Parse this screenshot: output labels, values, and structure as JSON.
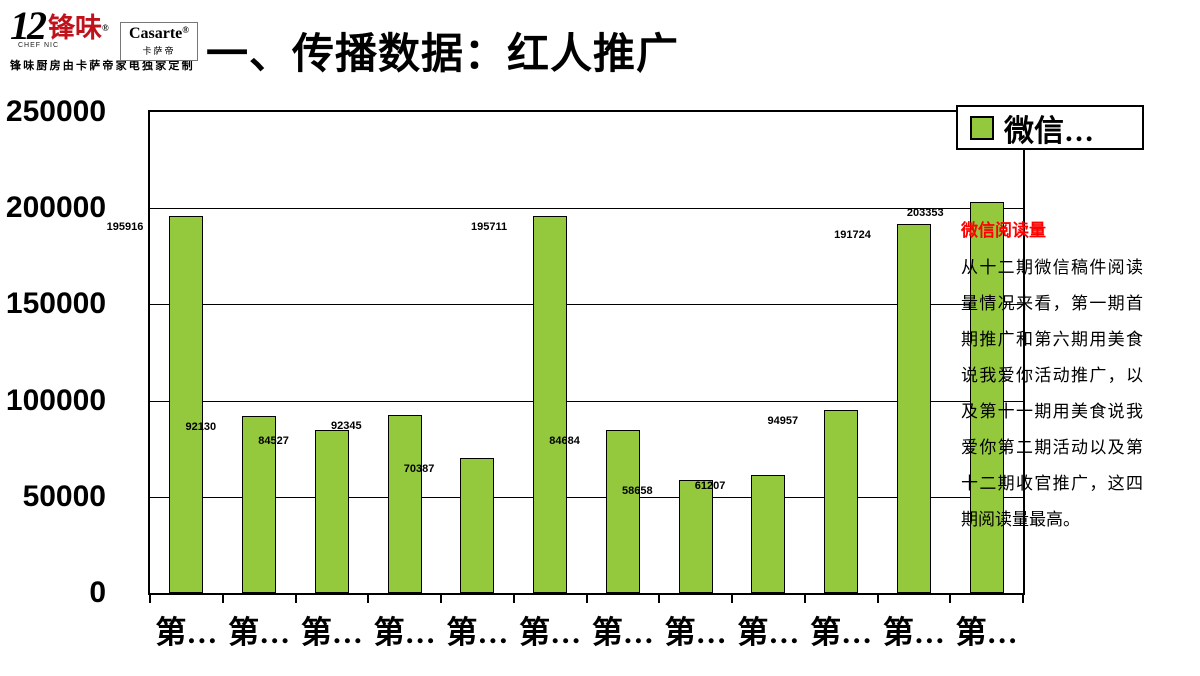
{
  "header": {
    "logo": {
      "number": "12",
      "name": "锋味",
      "reg": "®",
      "sub": "CHEF NIC",
      "tagline": "锋味厨房由卡萨帝家电独家定制"
    },
    "brand": {
      "name": "Casarte",
      "reg": "®",
      "sub": "卡萨帝"
    },
    "title": "一、传播数据：红人推广"
  },
  "chart_data": {
    "type": "bar",
    "title": "",
    "categories": [
      "第…",
      "第…",
      "第…",
      "第…",
      "第…",
      "第…",
      "第…",
      "第…",
      "第…",
      "第…",
      "第…",
      "第…"
    ],
    "values": [
      195916,
      92130,
      84527,
      92345,
      70387,
      195711,
      84684,
      58658,
      61207,
      94957,
      191724,
      203353
    ],
    "data_labels": [
      "195916",
      "92130",
      "84527",
      "92345",
      "70387",
      "195711",
      "84684",
      "58658",
      "61207",
      "94957",
      "191724",
      "203353"
    ],
    "xlabel": "",
    "ylabel": "",
    "ylim": [
      0,
      250000
    ],
    "yticks": [
      0,
      50000,
      100000,
      150000,
      200000,
      250000
    ],
    "grid": true,
    "legend_position": "top-right",
    "legend": [
      {
        "label": "微信…",
        "color": "#94C83D"
      }
    ],
    "bar_color": "#94C83D",
    "bar_border_color": "#000000"
  },
  "side_panel": {
    "heading": "微信阅读量",
    "heading_color": "#FF0000",
    "body": "从十二期微信稿件阅读量情况来看，第一期首期推广和第六期用美食说我爱你活动推广，以及第十一期用美食说我爱你第二期活动以及第十二期收官推广，这四期阅读量最高。"
  }
}
